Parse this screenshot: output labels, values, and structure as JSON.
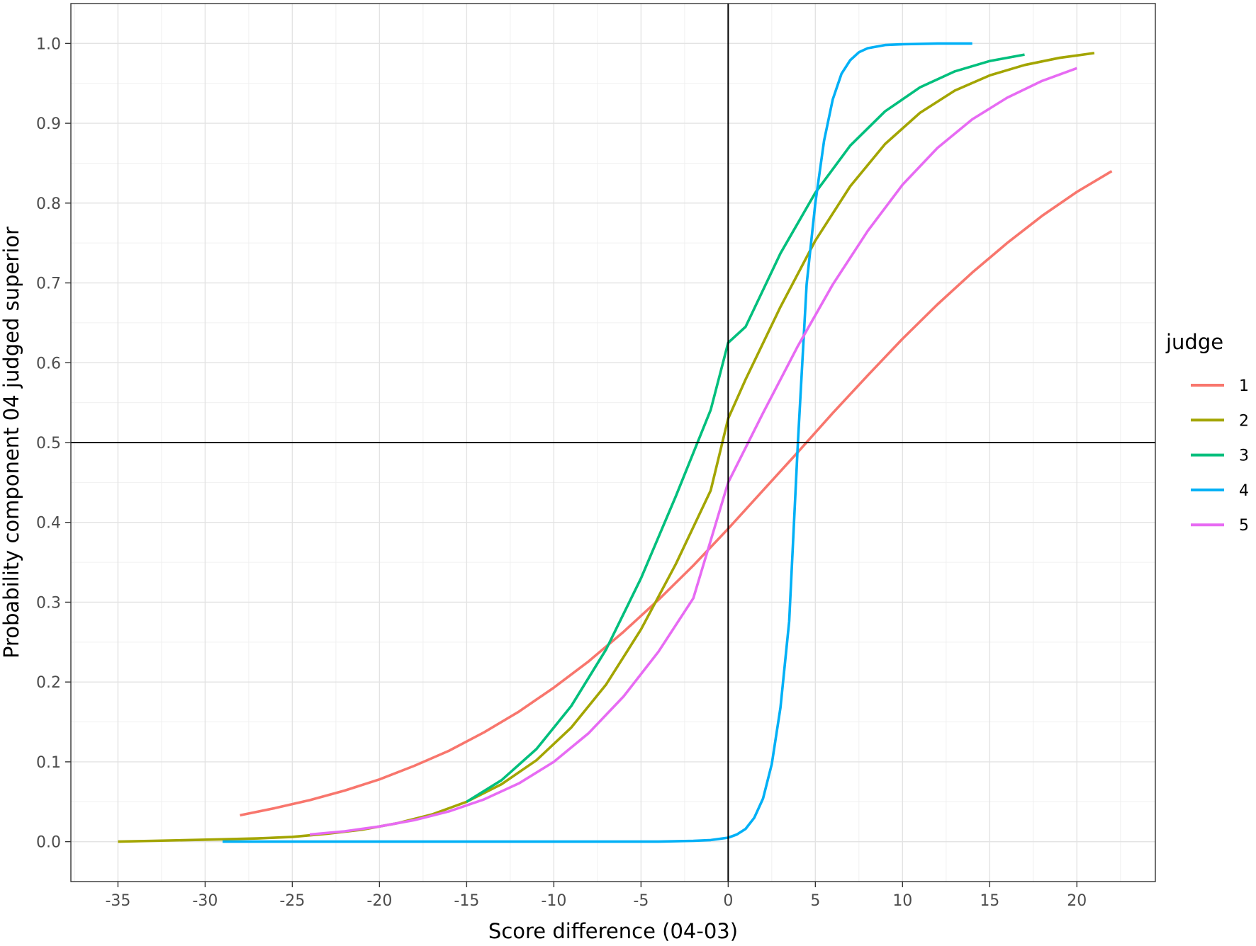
{
  "chart_data": {
    "type": "line",
    "title": "",
    "xlabel": "Score difference (04-03)",
    "ylabel": "Probability component 04 judged superior",
    "xlim": [
      -37.7,
      24.5
    ],
    "ylim": [
      -0.05,
      1.05
    ],
    "x_ticks": [
      -35,
      -30,
      -25,
      -20,
      -15,
      -10,
      -5,
      0,
      5,
      10,
      15,
      20
    ],
    "x_tick_labels": [
      "-35",
      "-30",
      "-25",
      "-20",
      "-15",
      "-10",
      "-5",
      "0",
      "5",
      "10",
      "15",
      "20"
    ],
    "y_ticks": [
      0.0,
      0.1,
      0.2,
      0.3,
      0.4,
      0.5,
      0.6,
      0.7,
      0.8,
      0.9,
      1.0
    ],
    "y_tick_labels": [
      "0.0",
      "0.1",
      "0.2",
      "0.3",
      "0.4",
      "0.5",
      "0.6",
      "0.7",
      "0.8",
      "0.9",
      "1.0"
    ],
    "grid": true,
    "reference_lines": {
      "x": 0,
      "y": 0.5,
      "color": "#000000"
    },
    "legend": {
      "title": "judge",
      "position": "right"
    },
    "series": [
      {
        "name": "1",
        "color": "#F8766D",
        "x": [
          -28,
          -26,
          -24,
          -22,
          -20,
          -18,
          -16,
          -14,
          -12,
          -10,
          -8,
          -6,
          -4,
          -2,
          0,
          2,
          4,
          6,
          8,
          10,
          12,
          14,
          16,
          18,
          20,
          22
        ],
        "y": [
          0.033,
          0.042,
          0.052,
          0.064,
          0.078,
          0.095,
          0.114,
          0.137,
          0.163,
          0.193,
          0.226,
          0.263,
          0.303,
          0.346,
          0.392,
          0.44,
          0.488,
          0.537,
          0.584,
          0.63,
          0.673,
          0.713,
          0.75,
          0.784,
          0.814,
          0.84
        ]
      },
      {
        "name": "2",
        "color": "#A3A500",
        "x": [
          -35,
          -33,
          -31,
          -29,
          -27,
          -25,
          -23,
          -21,
          -19,
          -17,
          -15,
          -13,
          -11,
          -9,
          -7,
          -5,
          -3,
          -1,
          0,
          1,
          3,
          5,
          7,
          9,
          11,
          13,
          15,
          17,
          19,
          21
        ],
        "y": [
          0.0,
          0.001,
          0.002,
          0.003,
          0.004,
          0.006,
          0.01,
          0.015,
          0.023,
          0.034,
          0.05,
          0.072,
          0.102,
          0.143,
          0.197,
          0.266,
          0.348,
          0.44,
          0.53,
          0.579,
          0.67,
          0.753,
          0.821,
          0.874,
          0.913,
          0.941,
          0.96,
          0.973,
          0.982,
          0.988
        ]
      },
      {
        "name": "3",
        "color": "#00BF7D",
        "x": [
          -15,
          -13,
          -11,
          -9,
          -7,
          -5,
          -3,
          -1,
          0,
          1,
          3,
          5,
          7,
          9,
          11,
          13,
          15,
          17
        ],
        "y": [
          0.05,
          0.077,
          0.116,
          0.17,
          0.241,
          0.33,
          0.433,
          0.541,
          0.625,
          0.645,
          0.737,
          0.813,
          0.872,
          0.915,
          0.945,
          0.965,
          0.978,
          0.986
        ]
      },
      {
        "name": "4",
        "color": "#00B0F6",
        "x": [
          -29,
          -20,
          -10,
          -4,
          -2,
          -1,
          0,
          0.5,
          1,
          1.5,
          2,
          2.5,
          3,
          3.5,
          4,
          4.5,
          5,
          5.5,
          6,
          6.5,
          7,
          7.5,
          8,
          9,
          10,
          12,
          14
        ],
        "y": [
          0.0,
          0.0,
          0.0,
          0.0,
          0.001,
          0.002,
          0.005,
          0.009,
          0.016,
          0.03,
          0.054,
          0.097,
          0.168,
          0.276,
          0.5,
          0.698,
          0.8,
          0.878,
          0.93,
          0.962,
          0.979,
          0.989,
          0.994,
          0.998,
          0.999,
          1.0,
          1.0
        ]
      },
      {
        "name": "5",
        "color": "#E76BF3",
        "x": [
          -24,
          -22,
          -20,
          -18,
          -16,
          -14,
          -12,
          -10,
          -8,
          -6,
          -4,
          -2,
          0,
          2,
          4,
          6,
          8,
          10,
          12,
          14,
          16,
          18,
          20
        ],
        "y": [
          0.009,
          0.013,
          0.019,
          0.027,
          0.038,
          0.053,
          0.073,
          0.1,
          0.136,
          0.182,
          0.238,
          0.305,
          0.45,
          0.537,
          0.621,
          0.698,
          0.765,
          0.823,
          0.869,
          0.905,
          0.932,
          0.953,
          0.969
        ]
      }
    ]
  }
}
